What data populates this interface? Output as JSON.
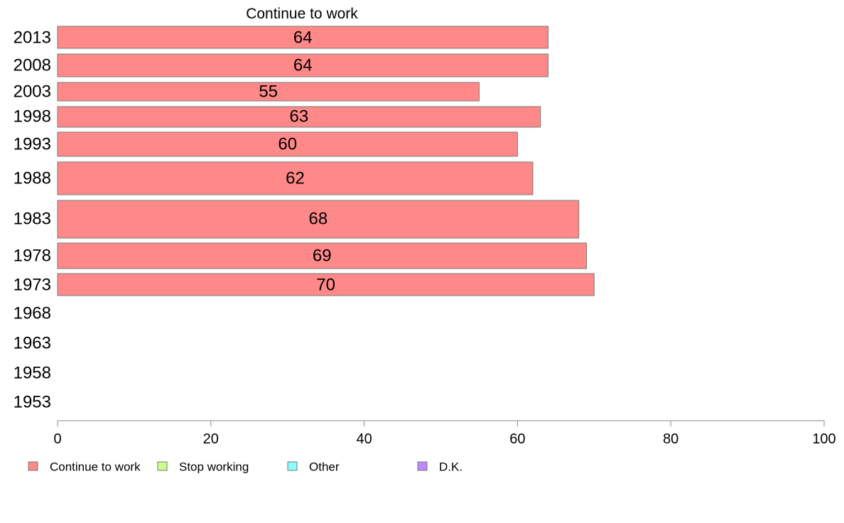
{
  "chart_data": {
    "type": "bar",
    "orientation": "horizontal",
    "title": "Continue to work",
    "categories": [
      "2013",
      "2008",
      "2003",
      "1998",
      "1993",
      "1988",
      "1983",
      "1978",
      "1973",
      "1968",
      "1963",
      "1958",
      "1953"
    ],
    "series": [
      {
        "name": "Continue to work",
        "color": "#ff8888",
        "values": [
          64,
          64,
          55,
          63,
          60,
          62,
          68,
          69,
          70,
          null,
          null,
          null,
          null
        ]
      },
      {
        "name": "Stop working",
        "color": "#ccff88",
        "values": [
          null,
          null,
          null,
          null,
          null,
          null,
          null,
          null,
          null,
          null,
          null,
          null,
          null
        ]
      },
      {
        "name": "Other",
        "color": "#88ffff",
        "values": [
          null,
          null,
          null,
          null,
          null,
          null,
          null,
          null,
          null,
          null,
          null,
          null,
          null
        ]
      },
      {
        "name": "D.K.",
        "color": "#bb88ff",
        "values": [
          null,
          null,
          null,
          null,
          null,
          null,
          null,
          null,
          null,
          null,
          null,
          null,
          null
        ]
      }
    ],
    "data_labels": [
      "64",
      "64",
      "55",
      "63",
      "60",
      "62",
      "68",
      "69",
      "70",
      "",
      "",
      "",
      ""
    ],
    "xlim": [
      0,
      100
    ],
    "xticks": [
      "0",
      "20",
      "40",
      "60",
      "80",
      "100"
    ],
    "grid": false,
    "legend_position": "bottom"
  }
}
